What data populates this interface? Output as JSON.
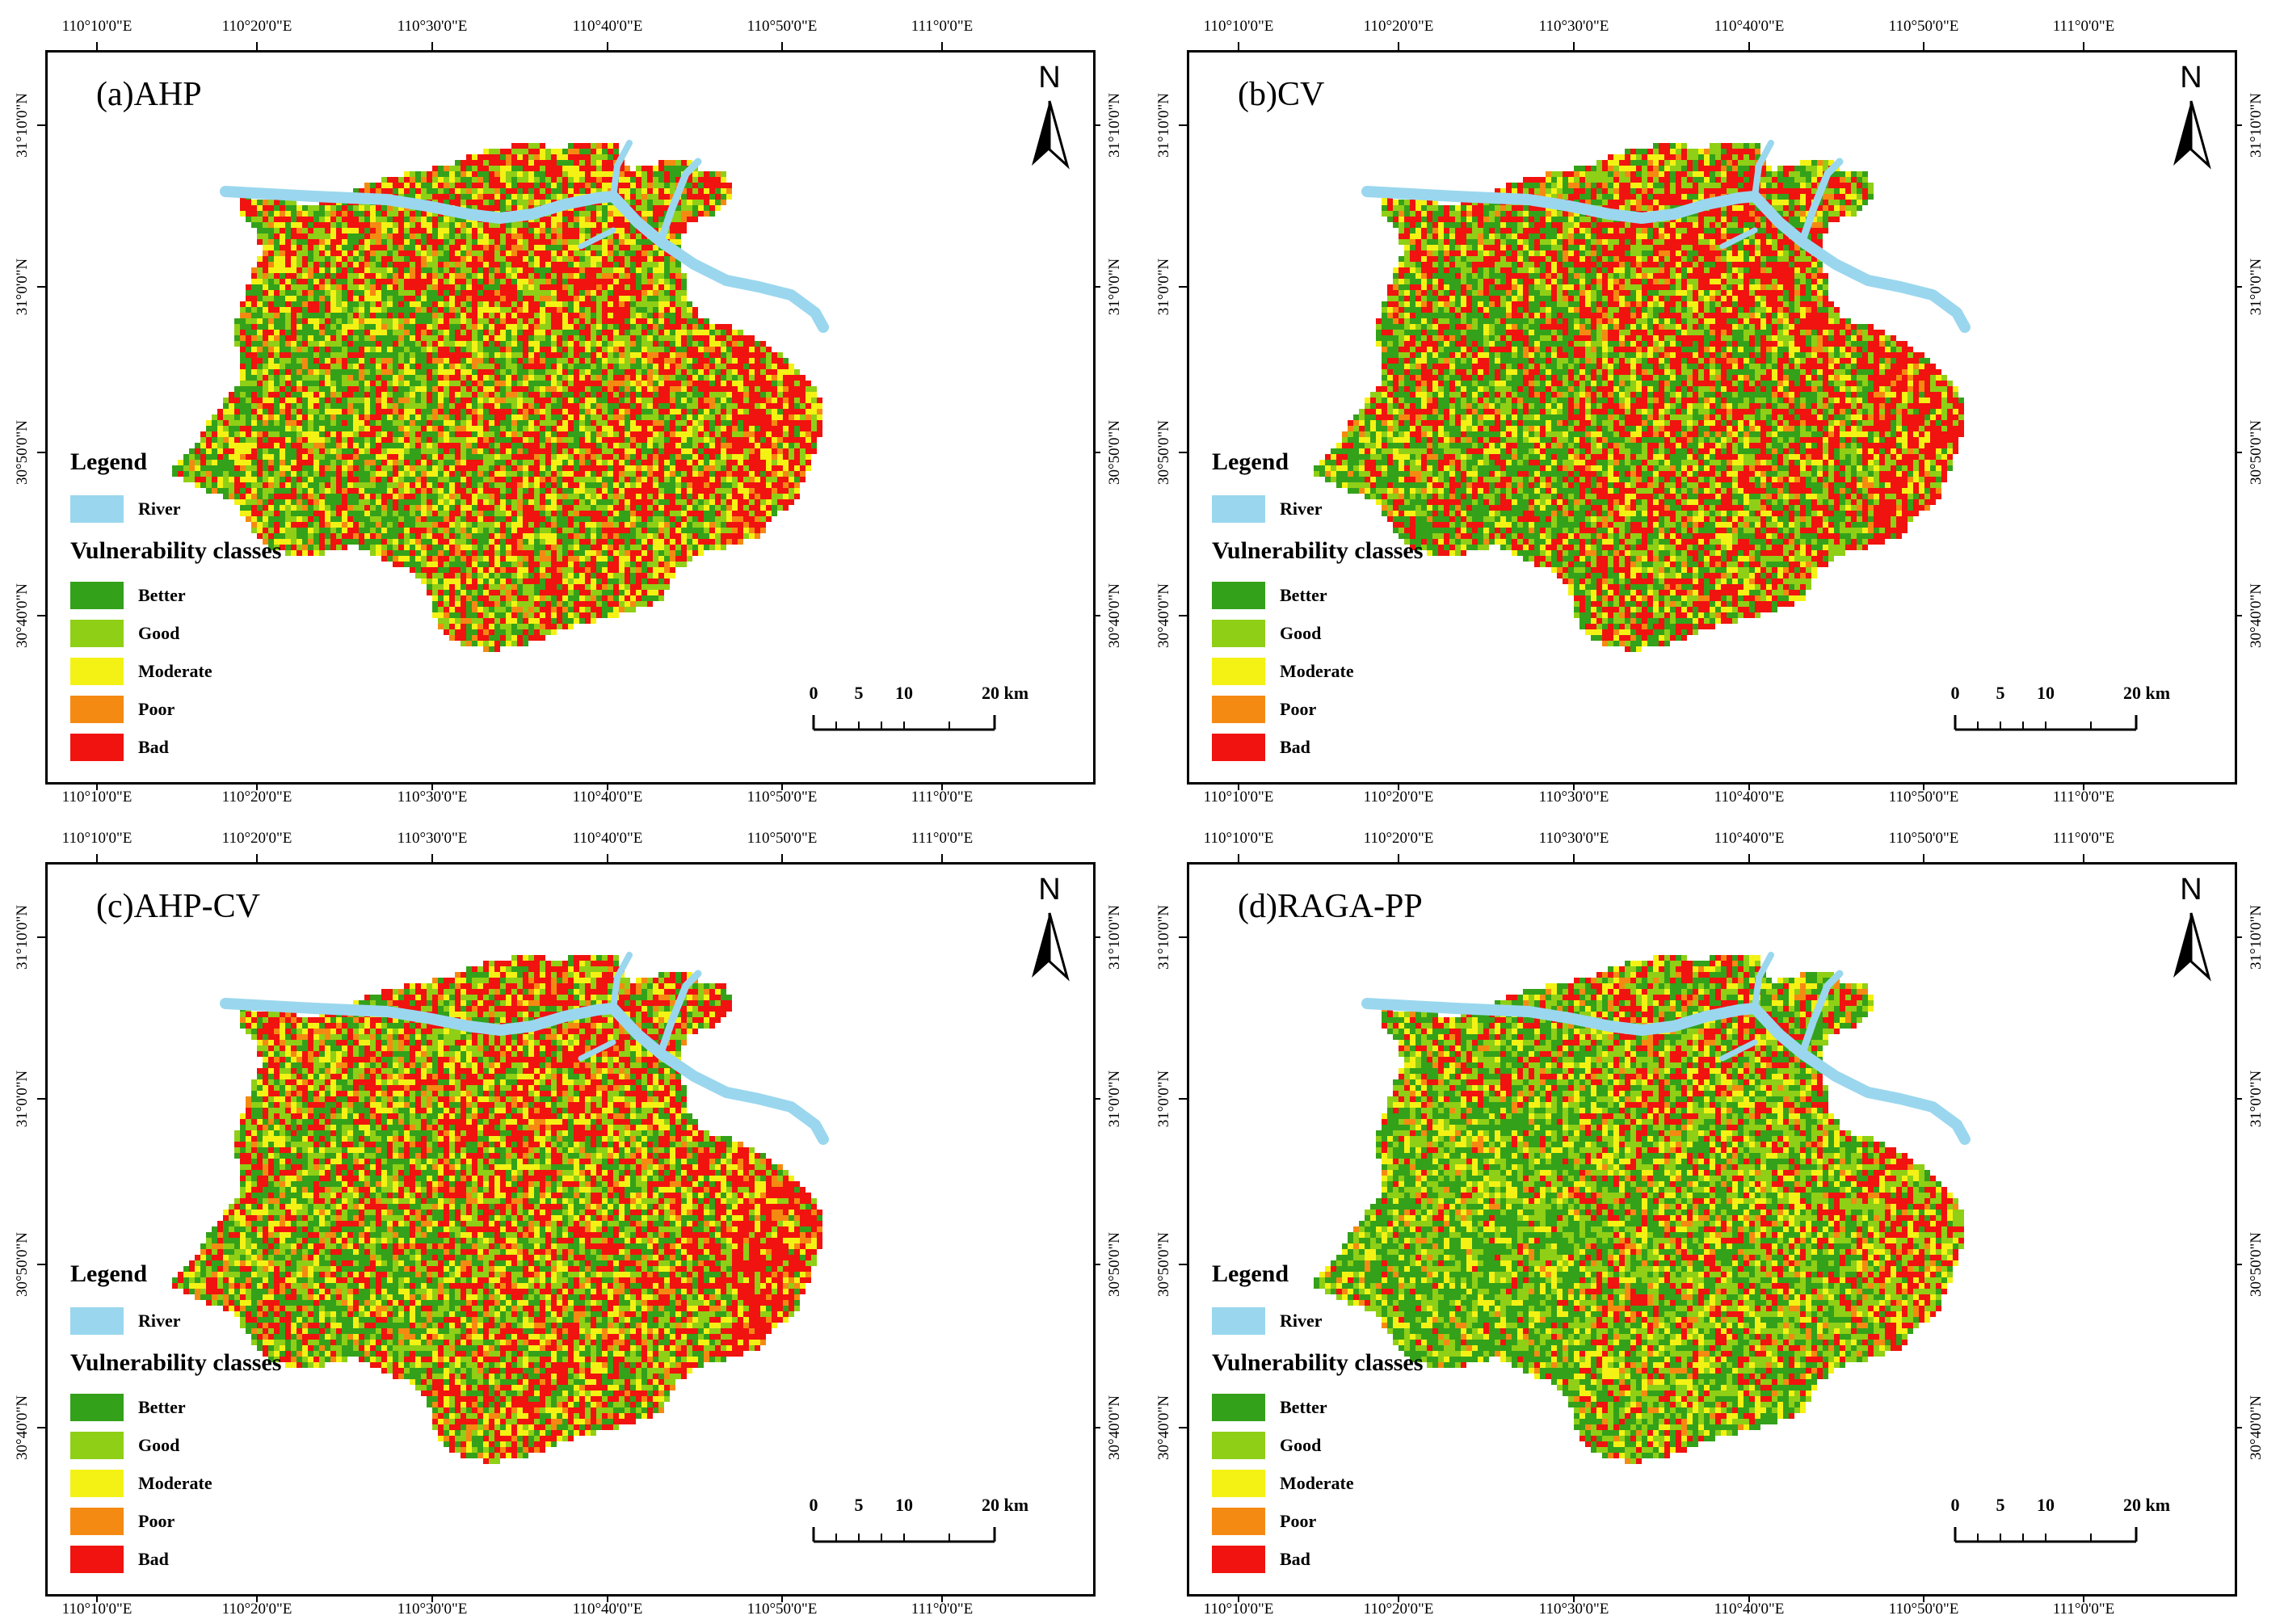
{
  "colors": {
    "river": "#9ad7ee",
    "better": "#34a11a",
    "good": "#8fcf16",
    "moderate": "#f4f214",
    "poor": "#f58a12",
    "bad": "#f0130f"
  },
  "lon_labels": [
    "110°10'0\"E",
    "110°20'0\"E",
    "110°30'0\"E",
    "110°40'0\"E",
    "110°50'0\"E",
    "111°0'0\"E"
  ],
  "lat_labels": [
    "31°10'0\"N",
    "31°0'0\"N",
    "30°50'0\"N",
    "30°40'0\"N"
  ],
  "north_label": "N",
  "legend": {
    "title": "Legend",
    "river": "River",
    "classes_title": "Vulnerability classes",
    "classes": [
      "Better",
      "Good",
      "Moderate",
      "Poor",
      "Bad"
    ]
  },
  "scale_bar": {
    "ticks": [
      "0",
      "5",
      "10",
      "20 km"
    ]
  },
  "panels": [
    {
      "id": "a",
      "title": "(a)AHP",
      "mix": {
        "better": 0.22,
        "good": 0.2,
        "moderate": 0.17,
        "poor": 0.08,
        "bad": 0.33
      }
    },
    {
      "id": "b",
      "title": "(b)CV",
      "mix": {
        "better": 0.26,
        "good": 0.19,
        "moderate": 0.12,
        "poor": 0.06,
        "bad": 0.37
      }
    },
    {
      "id": "c",
      "title": "(c)AHP-CV",
      "mix": {
        "better": 0.22,
        "good": 0.19,
        "moderate": 0.16,
        "poor": 0.08,
        "bad": 0.35
      }
    },
    {
      "id": "d",
      "title": "(d)RAGA-PP",
      "mix": {
        "better": 0.34,
        "good": 0.26,
        "moderate": 0.15,
        "poor": 0.06,
        "bad": 0.19
      }
    }
  ]
}
